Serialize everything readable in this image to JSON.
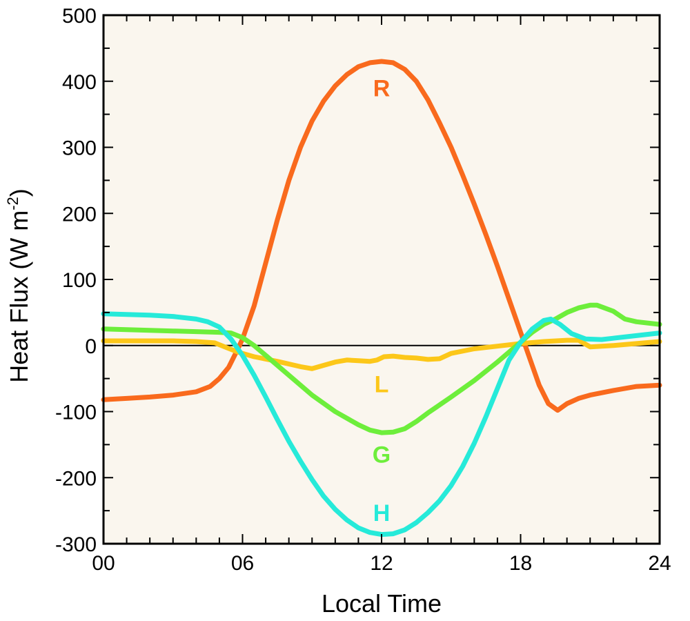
{
  "chart_data": {
    "type": "line",
    "title": "",
    "xlabel": "Local Time",
    "ylabel": "Heat Flux (W m",
    "ylabel_superscript": "-2",
    "ylabel_close": ")",
    "xlim": [
      0,
      24
    ],
    "ylim": [
      -300,
      500
    ],
    "x_ticks": [
      0,
      6,
      12,
      18,
      24
    ],
    "x_tick_labels": [
      "00",
      "06",
      "12",
      "18",
      "24"
    ],
    "y_ticks": [
      -300,
      -200,
      -100,
      0,
      100,
      200,
      300,
      400,
      500
    ],
    "y_tick_labels": [
      "-300",
      "-200",
      "-100",
      "0",
      "100",
      "200",
      "300",
      "400",
      "500"
    ],
    "grid": false,
    "background_color": "#faf6ee",
    "zero_line": true,
    "series": [
      {
        "name": "R",
        "color": "#f96a1d",
        "label_at": [
          12,
          390
        ],
        "points": [
          [
            0,
            -82
          ],
          [
            1,
            -80
          ],
          [
            2,
            -78
          ],
          [
            3,
            -75
          ],
          [
            4,
            -70
          ],
          [
            4.6,
            -62
          ],
          [
            5,
            -50
          ],
          [
            5.4,
            -33
          ],
          [
            5.8,
            -5
          ],
          [
            6,
            10
          ],
          [
            6.5,
            60
          ],
          [
            7,
            125
          ],
          [
            7.5,
            190
          ],
          [
            8,
            250
          ],
          [
            8.5,
            300
          ],
          [
            9,
            340
          ],
          [
            9.5,
            370
          ],
          [
            10,
            393
          ],
          [
            10.5,
            410
          ],
          [
            11,
            422
          ],
          [
            11.5,
            428
          ],
          [
            12,
            430
          ],
          [
            12.5,
            428
          ],
          [
            13,
            418
          ],
          [
            13.5,
            400
          ],
          [
            14,
            372
          ],
          [
            14.5,
            337
          ],
          [
            15,
            300
          ],
          [
            15.5,
            258
          ],
          [
            16,
            214
          ],
          [
            16.5,
            168
          ],
          [
            17,
            120
          ],
          [
            17.5,
            70
          ],
          [
            18,
            20
          ],
          [
            18.4,
            -20
          ],
          [
            18.8,
            -60
          ],
          [
            19.2,
            -88
          ],
          [
            19.6,
            -98
          ],
          [
            20,
            -88
          ],
          [
            20.5,
            -80
          ],
          [
            21,
            -75
          ],
          [
            22,
            -68
          ],
          [
            23,
            -62
          ],
          [
            24,
            -60
          ]
        ]
      },
      {
        "name": "L",
        "color": "#fcc719",
        "label_at": [
          12,
          -58
        ],
        "points": [
          [
            0,
            7
          ],
          [
            1,
            7
          ],
          [
            2,
            7
          ],
          [
            3,
            7
          ],
          [
            4,
            6
          ],
          [
            4.8,
            4
          ],
          [
            5.3,
            -3
          ],
          [
            5.8,
            -10
          ],
          [
            6.5,
            -17
          ],
          [
            7.5,
            -24
          ],
          [
            8.5,
            -32
          ],
          [
            9,
            -35
          ],
          [
            9.5,
            -30
          ],
          [
            10,
            -25
          ],
          [
            10.5,
            -22
          ],
          [
            11,
            -23
          ],
          [
            11.5,
            -24
          ],
          [
            11.8,
            -22
          ],
          [
            12.1,
            -17
          ],
          [
            12.5,
            -16
          ],
          [
            13,
            -18
          ],
          [
            13.5,
            -19
          ],
          [
            14,
            -21
          ],
          [
            14.5,
            -20
          ],
          [
            15,
            -12
          ],
          [
            16,
            -5
          ],
          [
            17,
            -1
          ],
          [
            18,
            3
          ],
          [
            19,
            6
          ],
          [
            20,
            8
          ],
          [
            20.5,
            8
          ],
          [
            21,
            -2
          ],
          [
            22,
            0
          ],
          [
            23,
            3
          ],
          [
            24,
            6
          ]
        ]
      },
      {
        "name": "G",
        "color": "#6dee3b",
        "label_at": [
          12,
          -165
        ],
        "points": [
          [
            0,
            25
          ],
          [
            1,
            24
          ],
          [
            2,
            23
          ],
          [
            3,
            22
          ],
          [
            4,
            21
          ],
          [
            5,
            20
          ],
          [
            5.5,
            19
          ],
          [
            6,
            12
          ],
          [
            6.5,
            0
          ],
          [
            7,
            -15
          ],
          [
            8,
            -45
          ],
          [
            9,
            -75
          ],
          [
            10,
            -100
          ],
          [
            11,
            -120
          ],
          [
            11.5,
            -128
          ],
          [
            12,
            -132
          ],
          [
            12.5,
            -131
          ],
          [
            13,
            -126
          ],
          [
            13.5,
            -115
          ],
          [
            14,
            -102
          ],
          [
            15,
            -78
          ],
          [
            16,
            -53
          ],
          [
            17,
            -25
          ],
          [
            18,
            5
          ],
          [
            18.5,
            20
          ],
          [
            19,
            32
          ],
          [
            19.5,
            40
          ],
          [
            20,
            50
          ],
          [
            20.5,
            57
          ],
          [
            21,
            61
          ],
          [
            21.3,
            61
          ],
          [
            22,
            52
          ],
          [
            22.5,
            40
          ],
          [
            23,
            36
          ],
          [
            24,
            32
          ]
        ]
      },
      {
        "name": "H",
        "color": "#26ead9",
        "label_at": [
          12,
          -253
        ],
        "points": [
          [
            0,
            48
          ],
          [
            1,
            47
          ],
          [
            2,
            46
          ],
          [
            3,
            44
          ],
          [
            4,
            40
          ],
          [
            4.5,
            36
          ],
          [
            5,
            28
          ],
          [
            5.5,
            10
          ],
          [
            6,
            -15
          ],
          [
            6.5,
            -45
          ],
          [
            7,
            -78
          ],
          [
            7.5,
            -112
          ],
          [
            8,
            -145
          ],
          [
            8.5,
            -175
          ],
          [
            9,
            -203
          ],
          [
            9.5,
            -228
          ],
          [
            10,
            -248
          ],
          [
            10.5,
            -264
          ],
          [
            11,
            -276
          ],
          [
            11.5,
            -283
          ],
          [
            12,
            -286
          ],
          [
            12.5,
            -285
          ],
          [
            13,
            -279
          ],
          [
            13.5,
            -268
          ],
          [
            14,
            -253
          ],
          [
            14.5,
            -235
          ],
          [
            15,
            -212
          ],
          [
            15.5,
            -183
          ],
          [
            16,
            -148
          ],
          [
            16.5,
            -108
          ],
          [
            17,
            -65
          ],
          [
            17.5,
            -22
          ],
          [
            18,
            5
          ],
          [
            18.5,
            25
          ],
          [
            19,
            38
          ],
          [
            19.3,
            40
          ],
          [
            19.7,
            32
          ],
          [
            20.2,
            18
          ],
          [
            20.8,
            10
          ],
          [
            21.5,
            9
          ],
          [
            22,
            11
          ],
          [
            23,
            15
          ],
          [
            24,
            19
          ]
        ]
      }
    ]
  }
}
